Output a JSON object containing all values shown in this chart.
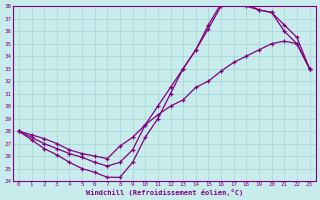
{
  "xlabel": "Windchill (Refroidissement éolien,°C)",
  "background_color": "#c8ecec",
  "grid_color": "#a8d8d8",
  "line_color": "#800080",
  "xlim": [
    -0.5,
    23.5
  ],
  "ylim": [
    24,
    38
  ],
  "xticks": [
    0,
    1,
    2,
    3,
    4,
    5,
    6,
    7,
    8,
    9,
    10,
    11,
    12,
    13,
    14,
    15,
    16,
    17,
    18,
    19,
    20,
    21,
    22,
    23
  ],
  "yticks": [
    24,
    25,
    26,
    27,
    28,
    29,
    30,
    31,
    32,
    33,
    34,
    35,
    36,
    37,
    38
  ],
  "line1_x": [
    0,
    1,
    2,
    3,
    4,
    5,
    6,
    7,
    8,
    9,
    10,
    11,
    12,
    13,
    14,
    15,
    16,
    17,
    18,
    19,
    20,
    21,
    22,
    23
  ],
  "line1_y": [
    28.0,
    27.5,
    27.0,
    26.6,
    26.2,
    25.9,
    25.5,
    25.2,
    25.5,
    26.5,
    28.5,
    30.0,
    31.5,
    33.0,
    34.5,
    36.2,
    38.0,
    38.2,
    38.0,
    37.7,
    37.5,
    36.0,
    35.0,
    33.0
  ],
  "line2_x": [
    0,
    1,
    2,
    3,
    4,
    5,
    6,
    7,
    8,
    9,
    10,
    11,
    12,
    13,
    14,
    15,
    16,
    17,
    18,
    19,
    20,
    21,
    22,
    23
  ],
  "line2_y": [
    28.0,
    27.3,
    26.6,
    26.1,
    25.5,
    25.0,
    24.7,
    24.3,
    24.3,
    25.5,
    27.5,
    29.0,
    31.0,
    33.0,
    34.5,
    36.5,
    38.2,
    38.3,
    38.2,
    37.7,
    37.5,
    36.5,
    35.5,
    33.0
  ],
  "line3_x": [
    0,
    1,
    2,
    3,
    4,
    5,
    6,
    7,
    8,
    9,
    10,
    11,
    12,
    13,
    14,
    15,
    16,
    17,
    18,
    19,
    20,
    21,
    22,
    23
  ],
  "line3_y": [
    28.0,
    27.7,
    27.4,
    27.0,
    26.5,
    26.2,
    26.0,
    25.8,
    26.8,
    27.5,
    28.5,
    29.3,
    30.0,
    30.5,
    31.5,
    32.0,
    32.8,
    33.5,
    34.0,
    34.5,
    35.0,
    35.2,
    35.0,
    33.0
  ]
}
